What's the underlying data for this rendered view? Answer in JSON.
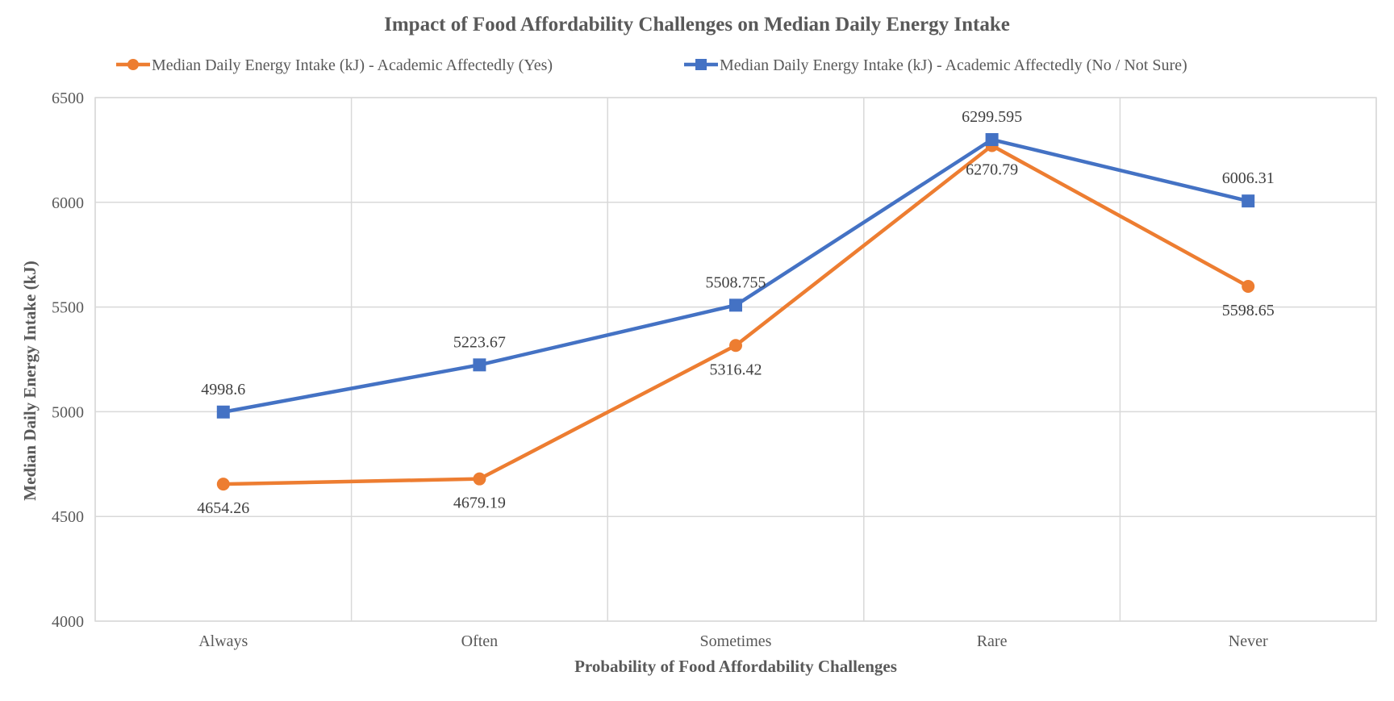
{
  "chart_data": {
    "type": "line",
    "title": "Impact of Food Affordability Challenges on Median Daily Energy Intake",
    "xlabel": "Probability of Food Affordability Challenges",
    "ylabel": "Median Daily Energy Intake (kJ)",
    "categories": [
      "Always",
      "Often",
      "Sometimes",
      "Rare",
      "Never"
    ],
    "ylim": [
      4000,
      6500
    ],
    "yticks": [
      4000,
      4500,
      5000,
      5500,
      6000,
      6500
    ],
    "grid": true,
    "legend_position": "top",
    "series": [
      {
        "name": "Median Daily Energy Intake (kJ) - Academic Affectedly (Yes)",
        "color": "#ED7D31",
        "marker": "circle",
        "label_position": "below",
        "values": [
          4654.26,
          4679.19,
          5316.42,
          6270.79,
          5598.65
        ],
        "labels": [
          "4654.26",
          "4679.19",
          "5316.42",
          "6270.79",
          "5598.65"
        ]
      },
      {
        "name": "Median Daily Energy Intake (kJ) - Academic Affectedly (No / Not Sure)",
        "color": "#4472C4",
        "marker": "square",
        "label_position": "above",
        "values": [
          4998.6,
          5223.67,
          5508.755,
          6299.595,
          6006.31
        ],
        "labels": [
          "4998.6",
          "5223.67",
          "5508.755",
          "6299.595",
          "6006.31"
        ]
      }
    ]
  }
}
